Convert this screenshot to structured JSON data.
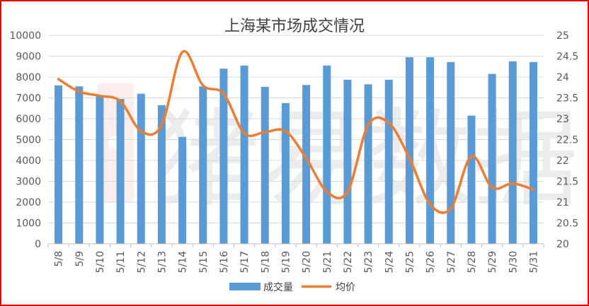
{
  "chart_data": {
    "type": "bar",
    "title": "上海某市场成交情况",
    "categories": [
      "5/8",
      "5/9",
      "5/10",
      "5/11",
      "5/12",
      "5/13",
      "5/14",
      "5/15",
      "5/16",
      "5/17",
      "5/18",
      "5/19",
      "5/20",
      "5/21",
      "5/22",
      "5/23",
      "5/24",
      "5/25",
      "5/26",
      "5/27",
      "5/28",
      "5/29",
      "5/30",
      "5/31"
    ],
    "series": [
      {
        "name": "成交量",
        "type": "bar",
        "axis": "left",
        "color": "#5b9bd5",
        "values": [
          7600,
          7550,
          7080,
          6950,
          7200,
          6650,
          5130,
          7550,
          8400,
          8550,
          7530,
          6750,
          7620,
          8550,
          7870,
          7650,
          7870,
          8950,
          8950,
          8720,
          6150,
          8150,
          8750,
          8720
        ]
      },
      {
        "name": "均价",
        "type": "line",
        "axis": "right",
        "color": "#ed7d31",
        "values": [
          23.95,
          23.65,
          23.55,
          23.42,
          22.7,
          22.85,
          24.6,
          23.8,
          23.6,
          22.65,
          22.68,
          22.7,
          22.05,
          21.25,
          21.25,
          22.85,
          22.9,
          22.05,
          20.95,
          20.85,
          22.1,
          21.35,
          21.45,
          21.3
        ]
      }
    ],
    "yleft": {
      "min": 0,
      "max": 10000,
      "step": 1000,
      "ticks": [
        "0",
        "1000",
        "2000",
        "3000",
        "4000",
        "5000",
        "6000",
        "7000",
        "8000",
        "9000",
        "10000"
      ]
    },
    "yright": {
      "min": 20,
      "max": 25,
      "step": 0.5,
      "ticks": [
        "20",
        "20.5",
        "21",
        "21.5",
        "22",
        "22.5",
        "23",
        "23.5",
        "24",
        "24.5",
        "25"
      ]
    },
    "grid": true,
    "legend_position": "bottom"
  },
  "colors": {
    "bar": "#5b9bd5",
    "line": "#ed7d31",
    "grid": "#d9d9d9",
    "text": "#595959",
    "border": "#e00000"
  },
  "watermark": {
    "text": "猪易数据"
  }
}
